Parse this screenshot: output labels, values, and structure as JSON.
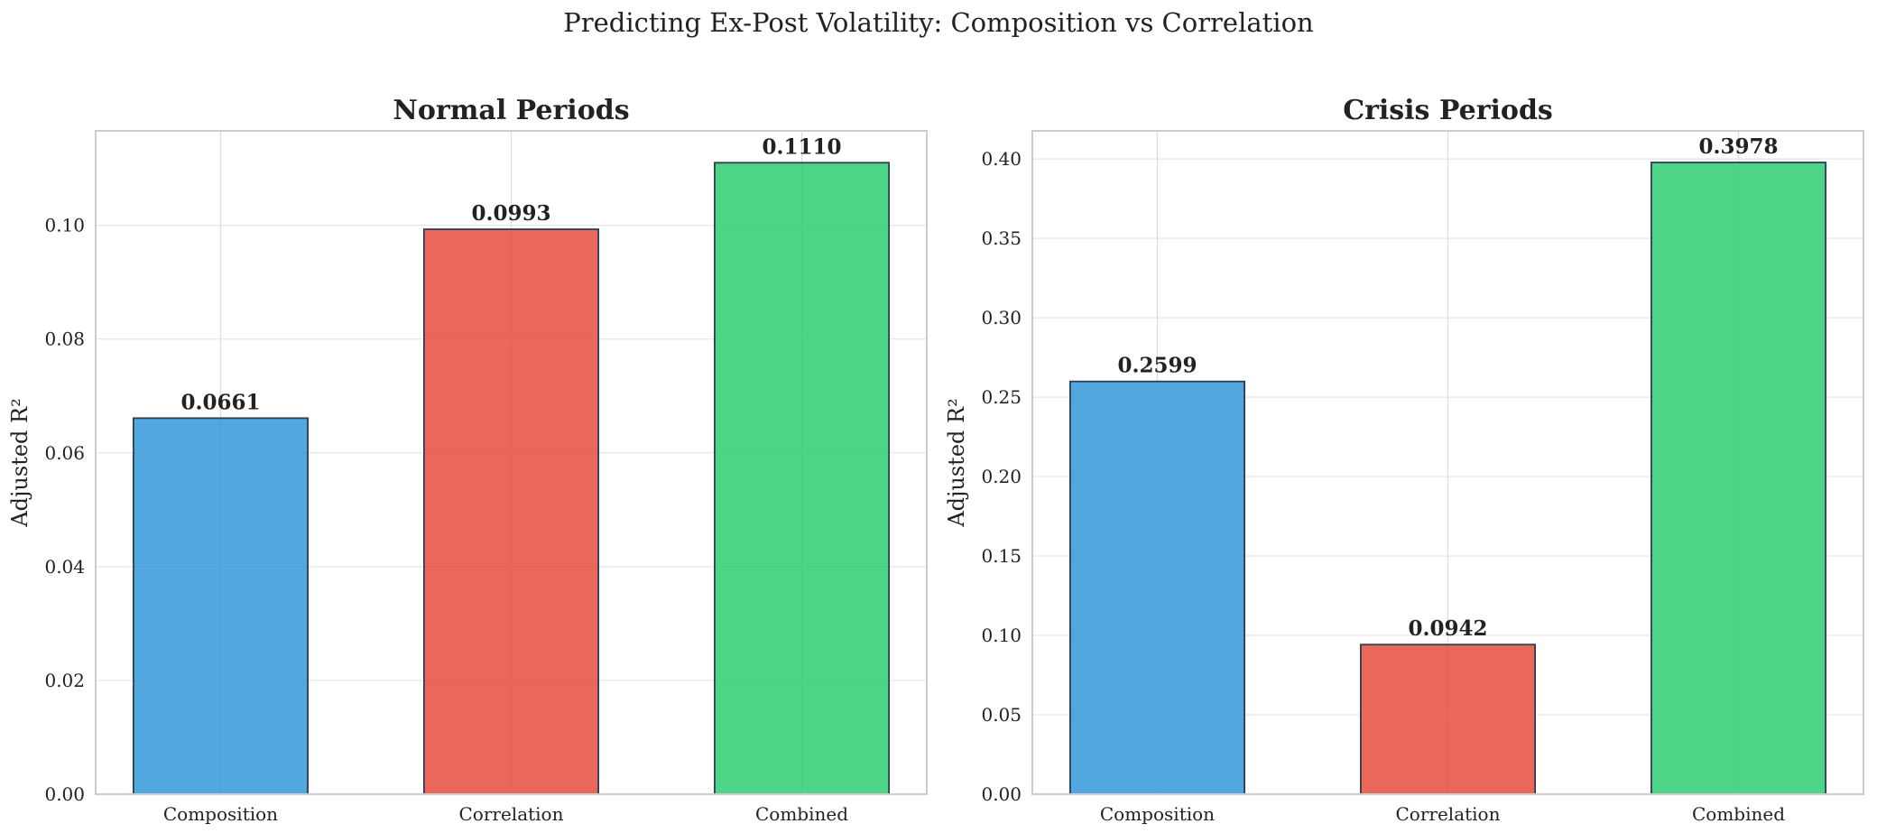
{
  "figure": {
    "title": "Predicting Ex-Post Volatility: Composition vs Correlation"
  },
  "chart_data": [
    {
      "type": "bar",
      "title": "Normal Periods",
      "xlabel": "",
      "ylabel": "Adjusted R²",
      "categories": [
        "Composition",
        "Correlation",
        "Combined"
      ],
      "values": [
        0.0661,
        0.0993,
        0.111
      ],
      "value_labels": [
        "0.0661",
        "0.0993",
        "0.1110"
      ],
      "colors": [
        "#3498db",
        "#e74c3c",
        "#2ecc71"
      ],
      "ylim": [
        0,
        0.1166
      ],
      "yticks": [
        0.0,
        0.02,
        0.04,
        0.06,
        0.08,
        0.1
      ],
      "ytick_labels": [
        "0.00",
        "0.02",
        "0.04",
        "0.06",
        "0.08",
        "0.10"
      ],
      "grid": true,
      "legend": "none"
    },
    {
      "type": "bar",
      "title": "Crisis Periods",
      "xlabel": "",
      "ylabel": "Adjusted R²",
      "categories": [
        "Composition",
        "Correlation",
        "Combined"
      ],
      "values": [
        0.2599,
        0.0942,
        0.3978
      ],
      "value_labels": [
        "0.2599",
        "0.0942",
        "0.3978"
      ],
      "colors": [
        "#3498db",
        "#e74c3c",
        "#2ecc71"
      ],
      "ylim": [
        0,
        0.4177
      ],
      "yticks": [
        0.0,
        0.05,
        0.1,
        0.15,
        0.2,
        0.25,
        0.3,
        0.35,
        0.4
      ],
      "ytick_labels": [
        "0.00",
        "0.05",
        "0.10",
        "0.15",
        "0.20",
        "0.25",
        "0.30",
        "0.35",
        "0.40"
      ],
      "grid": true,
      "legend": "none"
    }
  ]
}
